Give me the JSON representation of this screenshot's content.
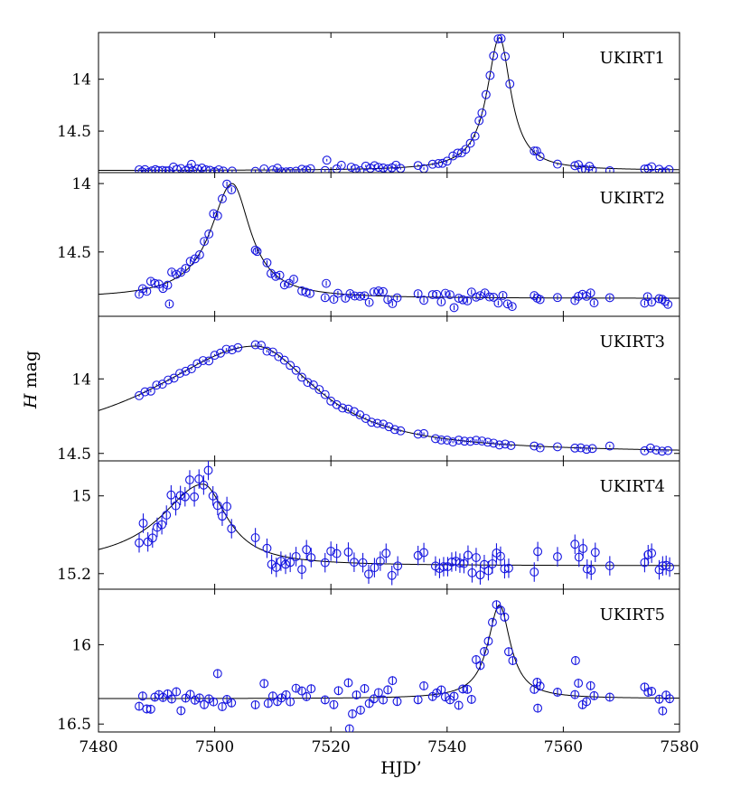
{
  "chart_data": {
    "type": "scatter",
    "xlabel": "HJD’",
    "ylabel_italic": "H",
    "ylabel_rest": " mag",
    "xlim": [
      7480,
      7580
    ],
    "xticks": [
      7480,
      7500,
      7520,
      7540,
      7560,
      7580
    ],
    "colors": {
      "points": "#1515e0",
      "model": "#000000",
      "axes": "#000000"
    },
    "panels": [
      {
        "name": "UKIRT1",
        "ylim": [
          13.55,
          14.9
        ],
        "yticks": [
          14,
          14.5
        ],
        "ytick_labels": [
          "14",
          "14.5"
        ],
        "model": {
          "t0": 7549,
          "peak": 13.6,
          "base": 14.88,
          "tau_rise": 2.6,
          "tau_fall": 2.4
        },
        "scatter": 0.015,
        "err": 0.012,
        "t": [
          7487,
          7487.5,
          7488,
          7488.6,
          7489.2,
          7489.8,
          7490.3,
          7491,
          7491.6,
          7492.1,
          7492.9,
          7493.5,
          7494.2,
          7495,
          7495.6,
          7496.2,
          7497,
          7497.8,
          7498.5,
          7499.2,
          7500,
          7500.7,
          7501.5,
          7503,
          7507,
          7508.5,
          7510,
          7510.8,
          7511.5,
          7512.3,
          7513,
          7514,
          7515,
          7515.8,
          7516.5,
          7519,
          7521,
          7521.8,
          7523.5,
          7524.2,
          7525,
          7526,
          7526.8,
          7527.5,
          7528.2,
          7529,
          7529.8,
          7530.5,
          7531.2,
          7532,
          7535,
          7536,
          7537.5,
          7538.5,
          7539.2,
          7540,
          7541,
          7541.8,
          7542.5,
          7543.2,
          7544,
          7544.8,
          7545.5,
          7546,
          7546.7,
          7547.4,
          7548,
          7548.8,
          7549.3,
          7550,
          7550.8,
          7555,
          7555.4,
          7556,
          7559,
          7562,
          7562.6,
          7563.2,
          7563.8,
          7564.5,
          7565,
          7568,
          7574,
          7574.6,
          7575.2,
          7576.5,
          7577,
          7577.6,
          7578.2
        ],
        "outliers": [
          [
            7519.3,
            14.78
          ],
          [
            7496,
            14.82
          ]
        ]
      },
      {
        "name": "UKIRT2",
        "ylim": [
          13.92,
          14.97
        ],
        "yticks": [
          14,
          14.5
        ],
        "ytick_labels": [
          "14",
          "14.5"
        ],
        "model": {
          "t0": 7503,
          "peak": 14.0,
          "base": 14.84,
          "tau_rise": 4.5,
          "tau_fall": 3.8
        },
        "scatter": 0.03,
        "err": 0.018,
        "t": [
          7487,
          7487.6,
          7488.3,
          7489,
          7489.7,
          7490.4,
          7491.1,
          7491.9,
          7492.6,
          7493.4,
          7494.2,
          7495,
          7495.8,
          7496.6,
          7497.4,
          7498.2,
          7499,
          7499.8,
          7500.5,
          7501.3,
          7502.1,
          7502.9,
          7507,
          7507.3,
          7509,
          7509.7,
          7510.5,
          7511.2,
          7512,
          7512.8,
          7513.6,
          7515,
          7515.7,
          7516.4,
          7519,
          7520.5,
          7521.2,
          7522.5,
          7523.3,
          7524.1,
          7525,
          7525.8,
          7526.6,
          7527.4,
          7528.2,
          7529,
          7529.8,
          7530.6,
          7531.4,
          7535,
          7536,
          7537.5,
          7538.2,
          7539,
          7539.7,
          7540.5,
          7541.2,
          7542,
          7542.7,
          7543.5,
          7544.2,
          7545,
          7545.7,
          7546.5,
          7547.3,
          7548,
          7548.8,
          7549.6,
          7550.4,
          7551.2,
          7555,
          7555.5,
          7556,
          7559,
          7562,
          7562.6,
          7563.3,
          7564,
          7564.7,
          7565.3,
          7568,
          7574,
          7574.5,
          7575.2,
          7576.5,
          7577,
          7577.5,
          7578
        ],
        "outliers": [
          [
            7492.2,
            14.88
          ],
          [
            7519.2,
            14.73
          ]
        ]
      },
      {
        "name": "UKIRT3",
        "ylim": [
          13.58,
          14.55
        ],
        "yticks": [
          14,
          14.5
        ],
        "ytick_labels": [
          "14",
          "14.5"
        ],
        "model": {
          "t0": 7507,
          "peak": 13.78,
          "base": 14.5,
          "tau_rise": 22,
          "tau_fall": 13
        },
        "scatter": 0.008,
        "err": 0.008,
        "t": [
          7487,
          7488,
          7489,
          7490,
          7491,
          7492,
          7493,
          7494,
          7495,
          7496,
          7497,
          7498,
          7499,
          7500,
          7501,
          7502,
          7503,
          7504,
          7507,
          7508,
          7509,
          7510,
          7511,
          7512,
          7513,
          7514,
          7515,
          7516,
          7517,
          7518,
          7519,
          7520,
          7521,
          7522,
          7523,
          7524,
          7525,
          7526,
          7527,
          7528,
          7529,
          7530,
          7531,
          7532,
          7535,
          7536,
          7538,
          7539,
          7540,
          7541,
          7542,
          7543,
          7544,
          7545,
          7546,
          7547,
          7548,
          7549,
          7550,
          7551,
          7555,
          7556,
          7559,
          7562,
          7563,
          7564,
          7565,
          7568,
          7574,
          7575,
          7576,
          7577,
          7578
        ],
        "outliers": []
      },
      {
        "name": "UKIRT4",
        "ylim": [
          14.91,
          15.24
        ],
        "yticks": [
          15,
          15.2
        ],
        "ytick_labels": [
          "15",
          "15.2"
        ],
        "model": {
          "t0": 7498,
          "peak": 14.97,
          "base": 15.18,
          "tau_rise": 9,
          "tau_fall": 5
        },
        "scatter": 0.025,
        "err": 0.025,
        "t": [
          7487,
          7487.7,
          7488.5,
          7489.3,
          7490.1,
          7490.9,
          7491.7,
          7492.5,
          7493.3,
          7494.1,
          7494.9,
          7495.7,
          7496.5,
          7497.3,
          7498.1,
          7498.9,
          7499.7,
          7500.5,
          7501.3,
          7502.1,
          7502.9,
          7507,
          7509,
          7509.8,
          7510.6,
          7511.4,
          7512.2,
          7513,
          7514,
          7515,
          7515.8,
          7516.6,
          7519,
          7520,
          7521,
          7523,
          7524,
          7525.5,
          7526.5,
          7527.5,
          7528.5,
          7529.5,
          7530.5,
          7531.5,
          7535,
          7536,
          7538,
          7538.7,
          7539.4,
          7540.1,
          7540.8,
          7541.5,
          7542.2,
          7542.9,
          7543.6,
          7544.3,
          7545,
          7545.7,
          7546.4,
          7547.1,
          7547.8,
          7548.5,
          7549.2,
          7549.9,
          7550.6,
          7555,
          7555.6,
          7559,
          7562,
          7562.7,
          7563.4,
          7564.1,
          7564.8,
          7565.5,
          7568,
          7574,
          7574.6,
          7575.2,
          7576.5,
          7577.1,
          7577.7,
          7578.3
        ],
        "outliers": []
      },
      {
        "name": "UKIRT5",
        "ylim": [
          15.65,
          16.55
        ],
        "yticks": [
          16,
          16.5
        ],
        "ytick_labels": [
          "16",
          "16.5"
        ],
        "model": {
          "t0": 7549,
          "peak": 15.75,
          "base": 16.34,
          "tau_rise": 2.4,
          "tau_fall": 2.3
        },
        "scatter": 0.045,
        "err": 0.028,
        "t": [
          7487,
          7487.6,
          7488.3,
          7489,
          7489.7,
          7490.4,
          7491.1,
          7491.9,
          7492.6,
          7493.4,
          7494.2,
          7495,
          7495.8,
          7496.6,
          7497.4,
          7498.2,
          7499,
          7499.8,
          7500.5,
          7501.3,
          7502.1,
          7502.9,
          7507,
          7508.5,
          7509.2,
          7510,
          7510.8,
          7511.5,
          7512.3,
          7513,
          7514,
          7515,
          7515.8,
          7516.6,
          7519,
          7520.5,
          7521.3,
          7523,
          7523.7,
          7524.4,
          7525.1,
          7525.8,
          7526.6,
          7527.4,
          7528.2,
          7529,
          7529.8,
          7530.6,
          7531.4,
          7535,
          7536,
          7537.5,
          7538.2,
          7539,
          7539.7,
          7540.5,
          7541.2,
          7542,
          7542.7,
          7543.5,
          7544.2,
          7545,
          7545.7,
          7546.4,
          7547.1,
          7547.8,
          7548.5,
          7549.2,
          7549.9,
          7550.6,
          7551.3,
          7555,
          7555.5,
          7556,
          7559,
          7562,
          7562.6,
          7563.3,
          7564,
          7564.7,
          7565.3,
          7568,
          7574,
          7574.6,
          7575.2,
          7576.5,
          7577.1,
          7577.7,
          7578.3
        ],
        "outliers": [
          [
            7523.2,
            16.53
          ],
          [
            7562.1,
            16.1
          ],
          [
            7555.6,
            16.4
          ]
        ]
      }
    ]
  }
}
